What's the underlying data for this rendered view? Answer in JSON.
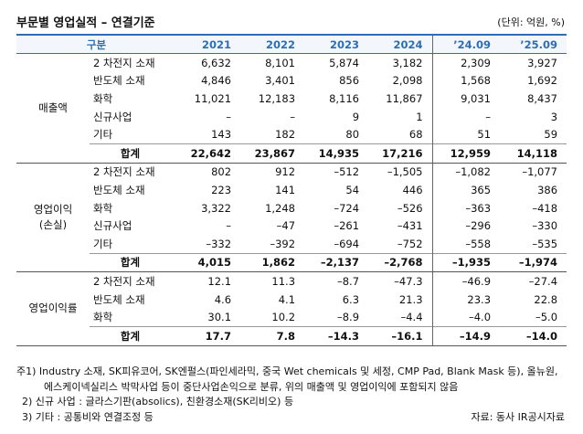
{
  "header": {
    "title": "부문별 영업실적 – 연결기준",
    "unit": "(단위: 억원, %)"
  },
  "table": {
    "columns": [
      "구분",
      "2021",
      "2022",
      "2023",
      "2024",
      "’24.09",
      "’25.09"
    ],
    "groups": [
      {
        "label": [
          "매출액"
        ],
        "rows": [
          {
            "item": "2 차전지 소재",
            "values": [
              "6,632",
              "8,101",
              "5,874",
              "3,182",
              "2,309",
              "3,927"
            ]
          },
          {
            "item": "반도체 소재",
            "values": [
              "4,846",
              "3,401",
              "856",
              "2,098",
              "1,568",
              "1,692"
            ]
          },
          {
            "item": "화학",
            "values": [
              "11,021",
              "12,183",
              "8,116",
              "11,867",
              "9,031",
              "8,437"
            ]
          },
          {
            "item": "신규사업",
            "values": [
              "–",
              "–",
              "9",
              "1",
              "–",
              "3"
            ]
          },
          {
            "item": "기타",
            "values": [
              "143",
              "182",
              "80",
              "68",
              "51",
              "59"
            ]
          },
          {
            "item": "합계",
            "values": [
              "22,642",
              "23,867",
              "14,935",
              "17,216",
              "12,959",
              "14,118"
            ]
          }
        ]
      },
      {
        "label": [
          "영업이익",
          "(손실)"
        ],
        "rows": [
          {
            "item": "2 차전지 소재",
            "values": [
              "802",
              "912",
              "–512",
              "–1,505",
              "–1,082",
              "–1,077"
            ]
          },
          {
            "item": "반도체 소재",
            "values": [
              "223",
              "141",
              "54",
              "446",
              "365",
              "386"
            ]
          },
          {
            "item": "화학",
            "values": [
              "3,322",
              "1,248",
              "–724",
              "–526",
              "–363",
              "–418"
            ]
          },
          {
            "item": "신규사업",
            "values": [
              "–",
              "–47",
              "–261",
              "–431",
              "–296",
              "–330"
            ]
          },
          {
            "item": "기타",
            "values": [
              "–332",
              "–392",
              "–694",
              "–752",
              "–558",
              "–535"
            ]
          },
          {
            "item": "합계",
            "values": [
              "4,015",
              "1,862",
              "–2,137",
              "–2,768",
              "–1,935",
              "–1,974"
            ]
          }
        ]
      },
      {
        "label": [
          "영업이익률"
        ],
        "rows": [
          {
            "item": "2 차전지 소재",
            "values": [
              "12.1",
              "11.3",
              "–8.7",
              "–47.3",
              "–46.9",
              "–27.4"
            ]
          },
          {
            "item": "반도체 소재",
            "values": [
              "4.6",
              "4.1",
              "6.3",
              "21.3",
              "23.3",
              "22.8"
            ]
          },
          {
            "item": "화학",
            "values": [
              "30.1",
              "10.2",
              "–8.9",
              "–4.4",
              "–4.0",
              "–5.0"
            ]
          },
          {
            "item": "합계",
            "values": [
              "17.7",
              "7.8",
              "–14.3",
              "–16.1",
              "–14.9",
              "–14.0"
            ]
          }
        ]
      }
    ]
  },
  "notes": [
    "주1) Industry 소재, SK피유코어, SK엔펄스(파인세라믹, 중국 Wet chemicals 및 세정, CMP Pad, Blank Mask 등), 올뉴원,",
    "에스케이넥실리스 박막사업 등이 중단사업손익으로 분류, 위의 매출액 및 영업이익에 포함되지 않음",
    "2) 신규 사업 : 글라스기판(absolics), 친환경소재(SK리비오) 등",
    "3) 기타 : 공통비와 연결조정 등"
  ],
  "source": "자료: 동사 IR공시자료"
}
